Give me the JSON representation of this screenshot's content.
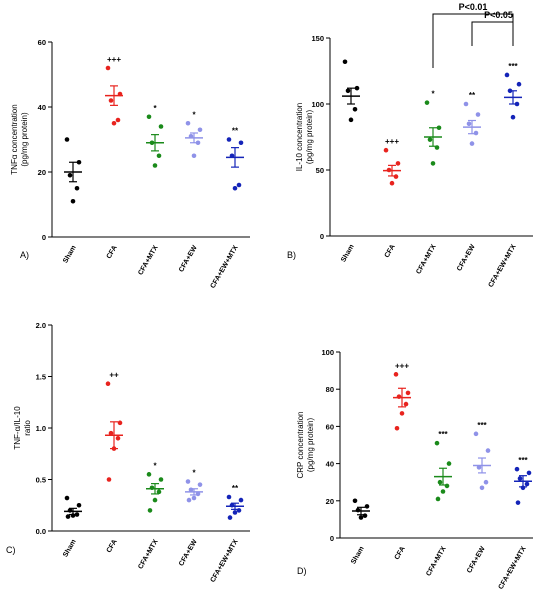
{
  "colors": {
    "Sham": "#000000",
    "CFA": "#e8231e",
    "CFA+MTX": "#1a8a1a",
    "CFA+EW": "#8f92e8",
    "CFA+EW+MTX": "#1424b8"
  },
  "chart_data": [
    {
      "type": "scatter",
      "panel": "A)",
      "ylabel_line1": "TNFα concentration",
      "ylabel_line2": "(pg/mg protein)",
      "ylim": [
        0,
        60
      ],
      "yticks": [
        "0",
        "20",
        "40",
        "60"
      ],
      "categories": [
        "Sham",
        "CFA",
        "CFA+MTX",
        "CFA+EW",
        "CFA+EW+MTX"
      ],
      "series": [
        {
          "category": "Sham",
          "points": [
            30,
            23,
            19,
            15,
            11
          ],
          "mean": 20,
          "sem": 3,
          "sig": ""
        },
        {
          "category": "CFA",
          "points": [
            52,
            44,
            42,
            36,
            35
          ],
          "mean": 43.5,
          "sem": 3,
          "sig": "+++"
        },
        {
          "category": "CFA+MTX",
          "points": [
            37,
            34,
            29,
            25,
            22
          ],
          "mean": 29,
          "sem": 2.5,
          "sig": "*"
        },
        {
          "category": "CFA+EW",
          "points": [
            35,
            33,
            31,
            29,
            25
          ],
          "mean": 30.5,
          "sem": 1.5,
          "sig": "*"
        },
        {
          "category": "CFA+EW+MTX",
          "points": [
            30,
            29,
            25,
            16,
            15
          ],
          "mean": 24.5,
          "sem": 3,
          "sig": "**"
        }
      ]
    },
    {
      "type": "scatter",
      "panel": "B)",
      "ylabel_line1": "IL-10 concentration",
      "ylabel_line2": "(pg/mg protein)",
      "ylim": [
        0,
        150
      ],
      "yticks": [
        "0",
        "50",
        "100",
        "150"
      ],
      "categories": [
        "Sham",
        "CFA",
        "CFA+MTX",
        "CFA+EW",
        "CFA+EW+MTX"
      ],
      "series": [
        {
          "category": "Sham",
          "points": [
            132,
            112,
            110,
            96,
            88
          ],
          "mean": 106,
          "sem": 6,
          "sig": ""
        },
        {
          "category": "CFA",
          "points": [
            65,
            55,
            50,
            45,
            40
          ],
          "mean": 49.5,
          "sem": 4,
          "sig": "+++"
        },
        {
          "category": "CFA+MTX",
          "points": [
            101,
            82,
            73,
            67,
            55
          ],
          "mean": 75,
          "sem": 7,
          "sig": "*"
        },
        {
          "category": "CFA+EW",
          "points": [
            100,
            92,
            85,
            78,
            70
          ],
          "mean": 82.5,
          "sem": 5,
          "sig": "**"
        },
        {
          "category": "CFA+EW+MTX",
          "points": [
            122,
            115,
            110,
            100,
            90
          ],
          "mean": 105,
          "sem": 5,
          "sig": "***"
        }
      ],
      "brackets": [
        {
          "from": "CFA+MTX",
          "to": "CFA+EW+MTX",
          "label": "P<0.01"
        },
        {
          "from": "CFA+EW",
          "to": "CFA+EW+MTX",
          "label": "P<0.05"
        }
      ]
    },
    {
      "type": "scatter",
      "panel": "C)",
      "ylabel_line1": "TNF-α/IL-10",
      "ylabel_line2": "ratio",
      "ylim": [
        0,
        2.0
      ],
      "yticks": [
        "0.0",
        "0.5",
        "1.0",
        "1.5",
        "2.0"
      ],
      "categories": [
        "Sham",
        "CFA",
        "CFA+MTX",
        "CFA+EW",
        "CFA+EW+MTX"
      ],
      "series": [
        {
          "category": "Sham",
          "points": [
            0.32,
            0.25,
            0.2,
            0.16,
            0.15,
            0.14
          ],
          "mean": 0.19,
          "sem": 0.03,
          "sig": ""
        },
        {
          "category": "CFA",
          "points": [
            1.43,
            1.05,
            0.95,
            0.9,
            0.8,
            0.5
          ],
          "mean": 0.93,
          "sem": 0.13,
          "sig": "++"
        },
        {
          "category": "CFA+MTX",
          "points": [
            0.55,
            0.5,
            0.42,
            0.38,
            0.3,
            0.2
          ],
          "mean": 0.41,
          "sem": 0.05,
          "sig": "*"
        },
        {
          "category": "CFA+EW",
          "points": [
            0.48,
            0.45,
            0.4,
            0.36,
            0.32,
            0.3
          ],
          "mean": 0.38,
          "sem": 0.03,
          "sig": "*"
        },
        {
          "category": "CFA+EW+MTX",
          "points": [
            0.33,
            0.3,
            0.25,
            0.2,
            0.18,
            0.13
          ],
          "mean": 0.24,
          "sem": 0.03,
          "sig": "**"
        }
      ]
    },
    {
      "type": "scatter",
      "panel": "D)",
      "ylabel_line1": "CRP concentration",
      "ylabel_line2": "(pg/mg protein)",
      "ylim": [
        0,
        100
      ],
      "yticks": [
        "0",
        "20",
        "40",
        "60",
        "80",
        "100"
      ],
      "categories": [
        "Sham",
        "CFA",
        "CFA+MTX",
        "CFA+EW",
        "CFA+EW+MTX"
      ],
      "series": [
        {
          "category": "Sham",
          "points": [
            20,
            17,
            15,
            12,
            11
          ],
          "mean": 14.5,
          "sem": 2,
          "sig": ""
        },
        {
          "category": "CFA",
          "points": [
            88,
            78,
            76,
            72,
            67,
            59
          ],
          "mean": 75.5,
          "sem": 5,
          "sig": "+++"
        },
        {
          "category": "CFA+MTX",
          "points": [
            51,
            40,
            30,
            28,
            25,
            21
          ],
          "mean": 33,
          "sem": 4.5,
          "sig": "***"
        },
        {
          "category": "CFA+EW",
          "points": [
            56,
            47,
            38,
            30,
            27
          ],
          "mean": 39,
          "sem": 4,
          "sig": "***"
        },
        {
          "category": "CFA+EW+MTX",
          "points": [
            37,
            35,
            32,
            29,
            27,
            19
          ],
          "mean": 30.5,
          "sem": 3,
          "sig": "***"
        }
      ]
    }
  ]
}
